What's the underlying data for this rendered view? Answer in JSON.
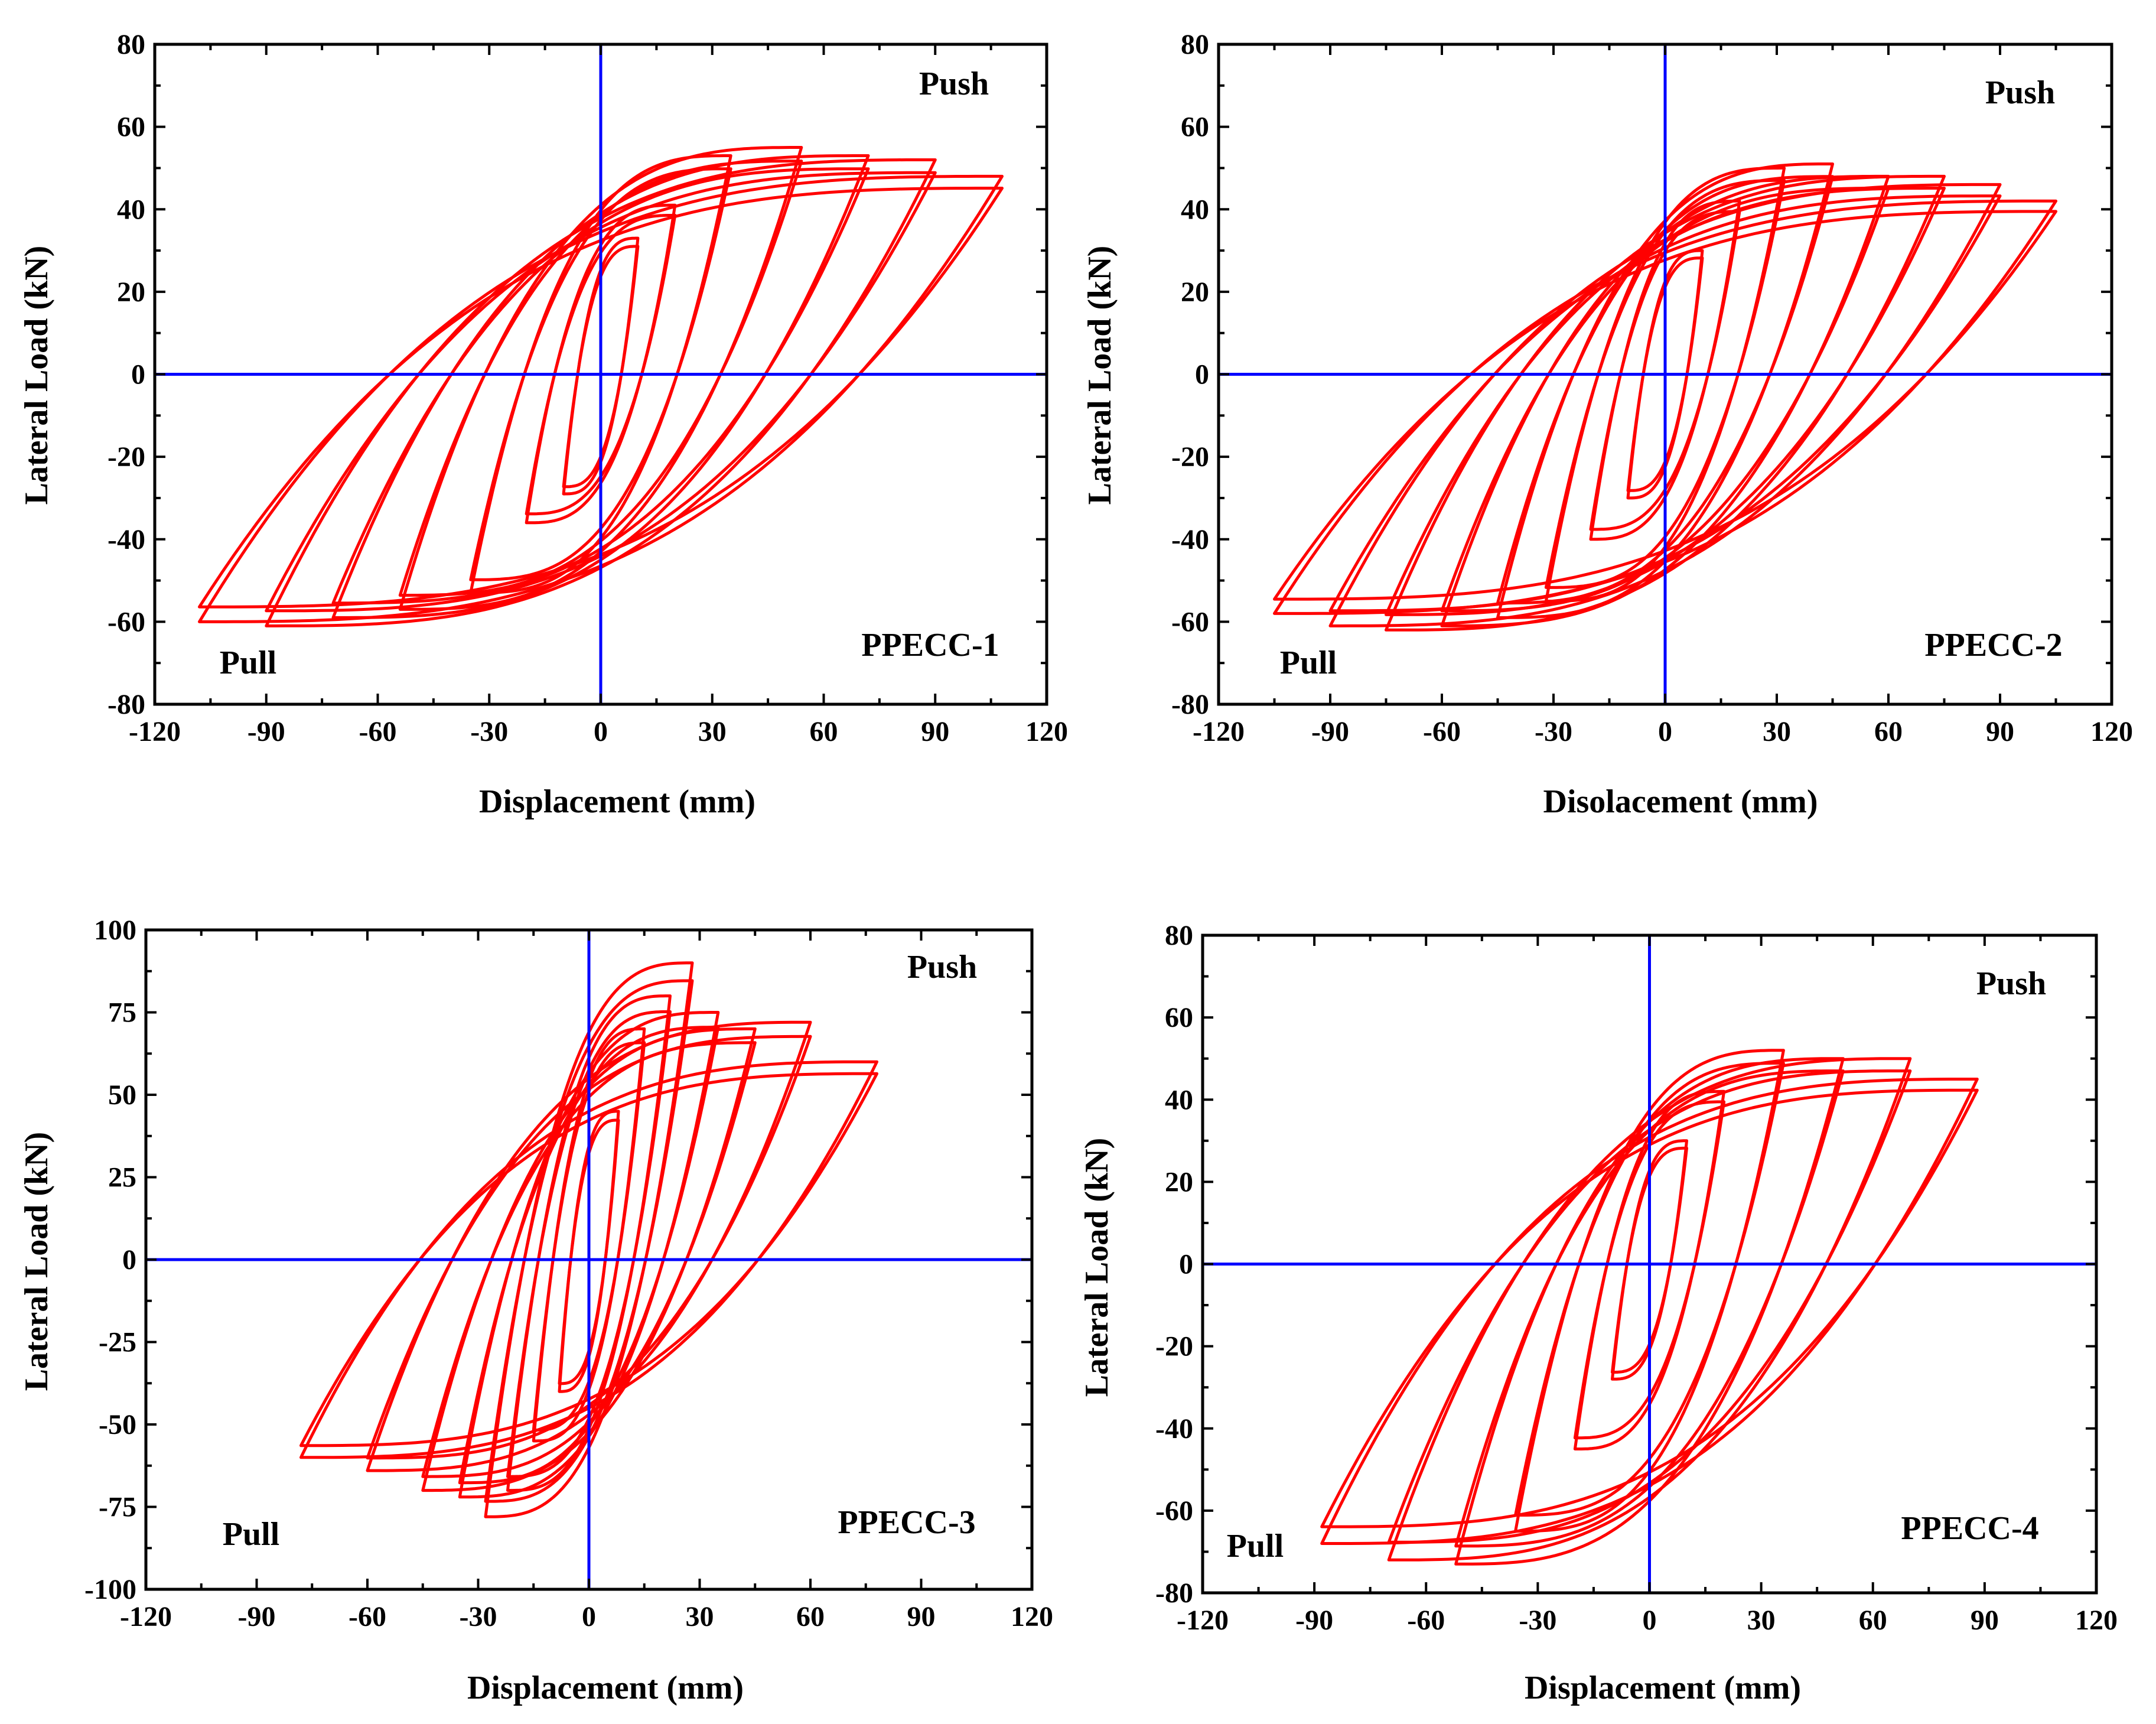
{
  "chart_data": [
    {
      "type": "line",
      "title": "PPECC-1",
      "xlabel": "Displacement (mm)",
      "ylabel": "Lateral Load (kN)",
      "xlim": [
        -120,
        120
      ],
      "ylim": [
        -80,
        80
      ],
      "xticks": [
        -120,
        -90,
        -60,
        -30,
        0,
        30,
        60,
        90,
        120
      ],
      "yticks": [
        -80,
        -60,
        -40,
        -20,
        0,
        20,
        40,
        60,
        80
      ],
      "annotations": {
        "push": "Push",
        "pull": "Pull",
        "specimen": "PPECC-1"
      },
      "loops": [
        {
          "d": 10,
          "p": 33,
          "n": -29,
          "r": 0.7
        },
        {
          "d": 20,
          "p": 41,
          "n": -36,
          "r": 0.62
        },
        {
          "d": 35,
          "p": 53,
          "n": -53,
          "r": 0.55
        },
        {
          "d": 54,
          "p": 55,
          "n": -57,
          "r": 0.52
        },
        {
          "d": 72,
          "p": 53,
          "n": -59,
          "r": 0.5
        },
        {
          "d": 90,
          "p": 52,
          "n": -61,
          "r": 0.48
        },
        {
          "d": 108,
          "p": 48,
          "n": -60,
          "r": 0.46
        }
      ]
    },
    {
      "type": "line",
      "title": "PPECC-2",
      "xlabel": "Disolacement (mm)",
      "ylabel": "Lateral Load (kN)",
      "xlim": [
        -120,
        120
      ],
      "ylim": [
        -80,
        80
      ],
      "xticks": [
        -120,
        -90,
        -60,
        -30,
        0,
        30,
        60,
        90,
        120
      ],
      "yticks": [
        -80,
        -60,
        -40,
        -20,
        0,
        20,
        40,
        60,
        80
      ],
      "annotations": {
        "push": "Push",
        "pull": "Pull",
        "specimen": "PPECC-2"
      },
      "loops": [
        {
          "d": 10,
          "p": 30,
          "n": -30,
          "r": 0.7
        },
        {
          "d": 20,
          "p": 42,
          "n": -40,
          "r": 0.62
        },
        {
          "d": 32,
          "p": 50,
          "n": -55,
          "r": 0.56
        },
        {
          "d": 45,
          "p": 51,
          "n": -59,
          "r": 0.52
        },
        {
          "d": 60,
          "p": 48,
          "n": -61,
          "r": 0.5
        },
        {
          "d": 75,
          "p": 48,
          "n": -62,
          "r": 0.48
        },
        {
          "d": 90,
          "p": 46,
          "n": -61,
          "r": 0.46
        },
        {
          "d": 105,
          "p": 42,
          "n": -58,
          "r": 0.44
        }
      ]
    },
    {
      "type": "line",
      "title": "PPECC-3",
      "xlabel": "Displacement (mm)",
      "ylabel": "Lateral Load (kN)",
      "xlim": [
        -120,
        120
      ],
      "ylim": [
        -100,
        100
      ],
      "xticks": [
        -120,
        -90,
        -60,
        -30,
        0,
        30,
        60,
        90,
        120
      ],
      "yticks": [
        -100,
        -75,
        -50,
        -25,
        0,
        25,
        50,
        75,
        100
      ],
      "annotations": {
        "push": "Push",
        "pull": "Pull",
        "specimen": "PPECC-3"
      },
      "loops": [
        {
          "d": 8,
          "p": 45,
          "n": -40,
          "r": 0.7
        },
        {
          "d": 15,
          "p": 70,
          "n": -55,
          "r": 0.62
        },
        {
          "d": 22,
          "p": 80,
          "n": -70,
          "r": 0.55
        },
        {
          "d": 28,
          "p": 90,
          "n": -78,
          "r": 0.52
        },
        {
          "d": 35,
          "p": 75,
          "n": -72,
          "r": 0.5
        },
        {
          "d": 45,
          "p": 70,
          "n": -70,
          "r": 0.48
        },
        {
          "d": 60,
          "p": 72,
          "n": -64,
          "r": 0.46
        },
        {
          "d": 78,
          "p": 60,
          "n": -60,
          "r": 0.45
        }
      ]
    },
    {
      "type": "line",
      "title": "PPECC-4",
      "xlabel": "Displacement (mm)",
      "ylabel": "Lateral Load (kN)",
      "xlim": [
        -120,
        120
      ],
      "ylim": [
        -80,
        80
      ],
      "xticks": [
        -120,
        -90,
        -60,
        -30,
        0,
        30,
        60,
        90,
        120
      ],
      "yticks": [
        -80,
        -60,
        -40,
        -20,
        0,
        20,
        40,
        60,
        80
      ],
      "annotations": {
        "push": "Push",
        "pull": "Pull",
        "specimen": "PPECC-4"
      },
      "loops": [
        {
          "d": 10,
          "p": 30,
          "n": -28,
          "r": 0.7
        },
        {
          "d": 20,
          "p": 42,
          "n": -45,
          "r": 0.62
        },
        {
          "d": 36,
          "p": 52,
          "n": -65,
          "r": 0.56
        },
        {
          "d": 52,
          "p": 50,
          "n": -73,
          "r": 0.52
        },
        {
          "d": 70,
          "p": 50,
          "n": -72,
          "r": 0.5
        },
        {
          "d": 88,
          "p": 45,
          "n": -68,
          "r": 0.48
        }
      ]
    }
  ]
}
